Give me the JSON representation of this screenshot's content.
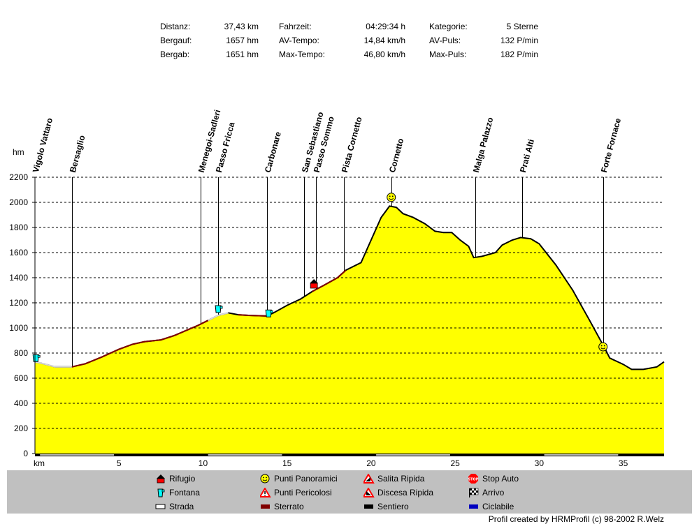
{
  "stats": [
    {
      "label": "Distanz:",
      "value": "37,43 km"
    },
    {
      "label": "Bergauf:",
      "value": "1657 hm"
    },
    {
      "label": "Bergab:",
      "value": "1651 hm"
    },
    {
      "label": "Fahrzeit:",
      "value": "04:29:34 h"
    },
    {
      "label": "AV-Tempo:",
      "value": "14,84 km/h"
    },
    {
      "label": "Max-Tempo:",
      "value": "46,80 km/h"
    },
    {
      "label": "Kategorie:",
      "value": "5 Sterne"
    },
    {
      "label": "AV-Puls:",
      "value": "132 P/min"
    },
    {
      "label": "Max-Puls:",
      "value": "182 P/min"
    }
  ],
  "chart_data": {
    "type": "area",
    "ylabel": "hm",
    "xlabel": "km",
    "xlim": [
      0,
      37.43
    ],
    "ylim": [
      0,
      2200
    ],
    "xticks": [
      5,
      10,
      15,
      20,
      25,
      30,
      35
    ],
    "yticks": [
      0,
      200,
      400,
      600,
      800,
      1000,
      1200,
      1400,
      1600,
      1800,
      2000,
      2200
    ],
    "grid": true,
    "fill_color": "#ffff00",
    "line_color": "#000000",
    "profile": [
      [
        0,
        730
      ],
      [
        0.5,
        715
      ],
      [
        1.2,
        690
      ],
      [
        2.2,
        690
      ],
      [
        3.0,
        715
      ],
      [
        4.0,
        770
      ],
      [
        5.0,
        830
      ],
      [
        5.8,
        870
      ],
      [
        6.5,
        890
      ],
      [
        7.5,
        905
      ],
      [
        8.3,
        940
      ],
      [
        9.0,
        980
      ],
      [
        9.7,
        1020
      ],
      [
        10.3,
        1060
      ],
      [
        10.9,
        1100
      ],
      [
        11.5,
        1120
      ],
      [
        12.1,
        1105
      ],
      [
        12.7,
        1100
      ],
      [
        13.8,
        1095
      ],
      [
        14.2,
        1120
      ],
      [
        15.0,
        1180
      ],
      [
        15.8,
        1230
      ],
      [
        16.5,
        1290
      ],
      [
        17.2,
        1340
      ],
      [
        18.0,
        1400
      ],
      [
        18.5,
        1460
      ],
      [
        19.4,
        1520
      ],
      [
        20.0,
        1700
      ],
      [
        20.6,
        1880
      ],
      [
        21.1,
        1970
      ],
      [
        21.5,
        1960
      ],
      [
        21.9,
        1910
      ],
      [
        22.5,
        1880
      ],
      [
        23.2,
        1830
      ],
      [
        23.8,
        1770
      ],
      [
        24.3,
        1760
      ],
      [
        24.8,
        1760
      ],
      [
        25.3,
        1700
      ],
      [
        25.8,
        1650
      ],
      [
        26.1,
        1560
      ],
      [
        26.6,
        1570
      ],
      [
        27.4,
        1600
      ],
      [
        27.8,
        1660
      ],
      [
        28.4,
        1700
      ],
      [
        28.9,
        1720
      ],
      [
        29.5,
        1710
      ],
      [
        30.0,
        1670
      ],
      [
        31.0,
        1500
      ],
      [
        32.0,
        1300
      ],
      [
        33.0,
        1060
      ],
      [
        33.9,
        840
      ],
      [
        34.2,
        760
      ],
      [
        35.0,
        710
      ],
      [
        35.5,
        670
      ],
      [
        36.2,
        670
      ],
      [
        37.0,
        690
      ],
      [
        37.43,
        730
      ]
    ],
    "surfaces": [
      {
        "type": "Strada",
        "from": 0,
        "to": 2.2
      },
      {
        "type": "Sterrato",
        "from": 2.2,
        "to": 10.3
      },
      {
        "type": "Strada",
        "from": 10.3,
        "to": 12.0
      },
      {
        "type": "Sterrato",
        "from": 12.0,
        "to": 14.0
      },
      {
        "type": "Sterrato",
        "from": 16.3,
        "to": 19.0
      }
    ],
    "waypoints": [
      {
        "name": "Vigolo Vattaro",
        "km": 0
      },
      {
        "name": "Bersaglio",
        "km": 2.2
      },
      {
        "name": "Menegoi-Sadleri",
        "km": 9.85
      },
      {
        "name": "Passo Fricca",
        "km": 10.9
      },
      {
        "name": "Carbonare",
        "km": 13.8
      },
      {
        "name": "San Sebastiano",
        "km": 16.0
      },
      {
        "name": "Passo Sommo",
        "km": 16.7
      },
      {
        "name": "Pista Cornetto",
        "km": 18.4
      },
      {
        "name": "Cornetto",
        "km": 21.2
      },
      {
        "name": "Malga Palazzo",
        "km": 26.2
      },
      {
        "name": "Prati Alti",
        "km": 29.0
      },
      {
        "name": "Forte Fornace",
        "km": 33.8
      }
    ],
    "markers": [
      {
        "type": "fontana",
        "km": 0.05,
        "hm": 760
      },
      {
        "type": "fontana",
        "km": 10.9,
        "hm": 1150
      },
      {
        "type": "fontana",
        "km": 13.9,
        "hm": 1115
      },
      {
        "type": "rifugio",
        "km": 16.6,
        "hm": 1350
      },
      {
        "type": "panoramico",
        "km": 21.2,
        "hm": 2040
      },
      {
        "type": "panoramico",
        "km": 33.8,
        "hm": 850
      }
    ],
    "legend": [
      {
        "icon": "rifugio-icon",
        "label": "Rifugio"
      },
      {
        "icon": "fontana-icon",
        "label": "Fontana"
      },
      {
        "icon": "strada-icon",
        "label": "Strada"
      },
      {
        "icon": "punti-panoramici-icon",
        "label": "Punti Panoramici"
      },
      {
        "icon": "punti-pericolosi-icon",
        "label": "Punti Pericolosi"
      },
      {
        "icon": "sterrato-icon",
        "label": "Sterrato"
      },
      {
        "icon": "salita-ripida-icon",
        "label": "Salita Ripida"
      },
      {
        "icon": "discesa-ripida-icon",
        "label": "Discesa Ripida"
      },
      {
        "icon": "sentiero-icon",
        "label": "Sentiero"
      },
      {
        "icon": "stop-auto-icon",
        "label": "Stop Auto"
      },
      {
        "icon": "arrivo-icon",
        "label": "Arrivo"
      },
      {
        "icon": "ciclabile-icon",
        "label": "Ciclabile"
      }
    ]
  },
  "credit": "Profil created by HRMProfil (c) 98-2002 R.Welz"
}
